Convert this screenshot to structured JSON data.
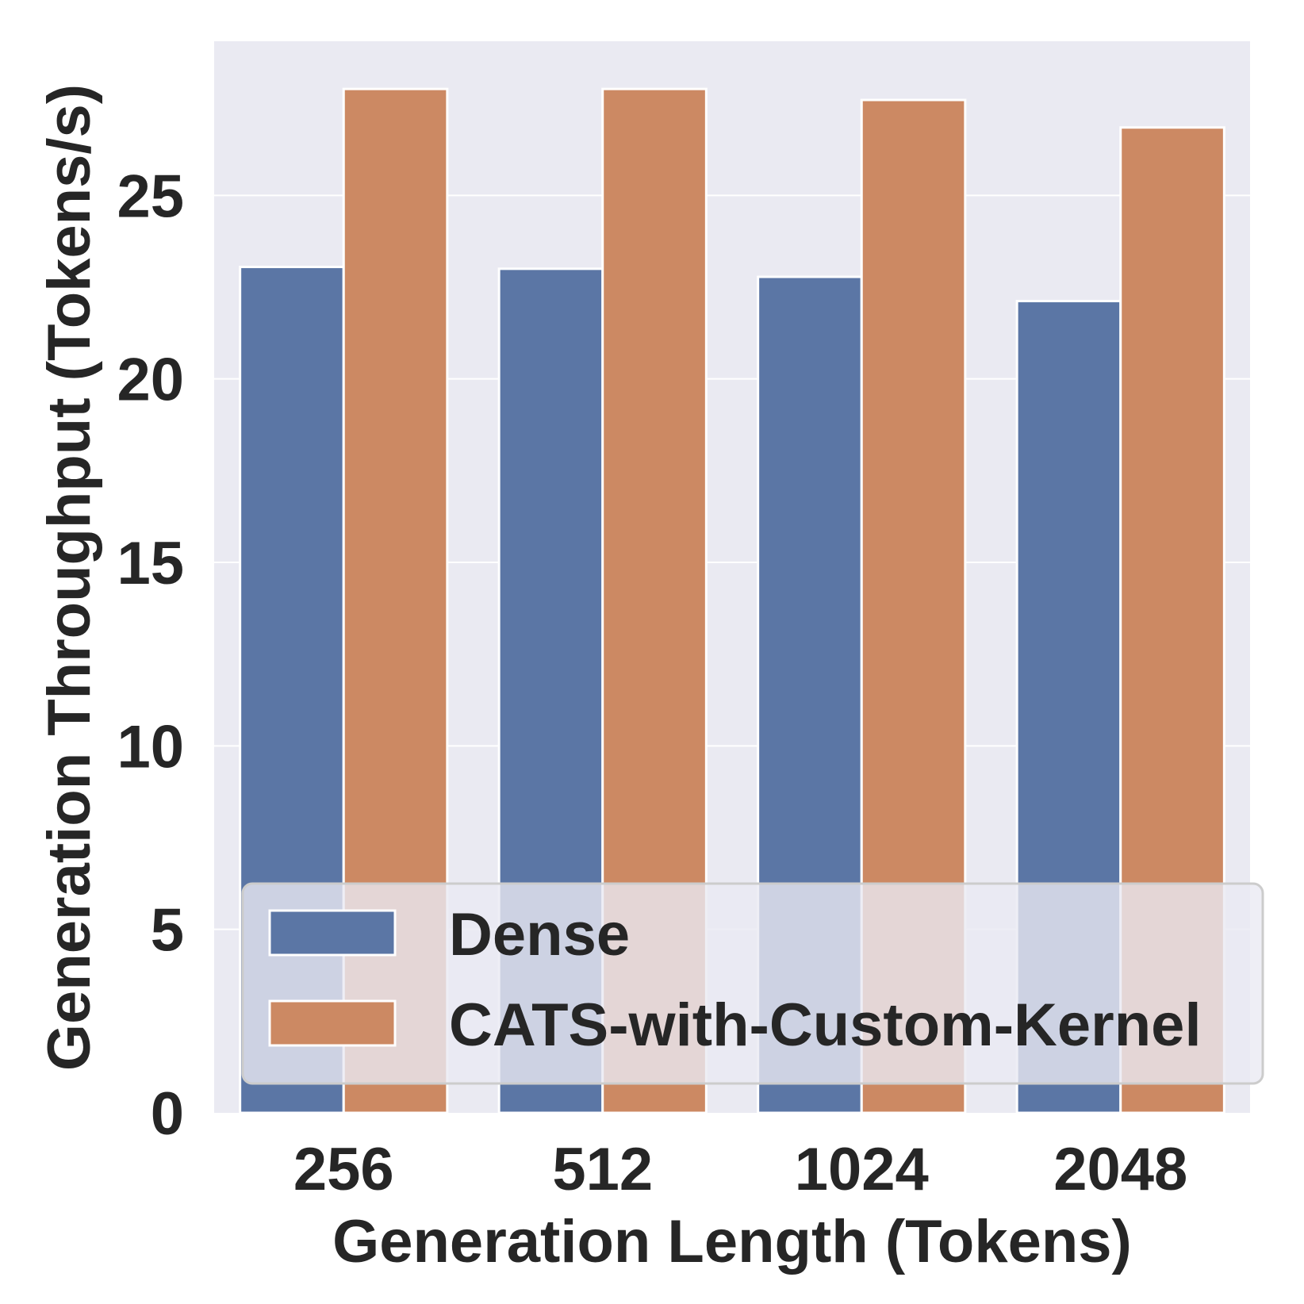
{
  "chart_data": {
    "type": "bar",
    "title": "",
    "xlabel": "Generation Length (Tokens)",
    "ylabel": "Generation Throughput (Tokens/s)",
    "categories": [
      "256",
      "512",
      "1024",
      "2048"
    ],
    "series": [
      {
        "name": "Dense",
        "color": "#5b76a5",
        "values": [
          23.05,
          23.0,
          22.78,
          22.12
        ]
      },
      {
        "name": "CATS-with-Custom-Kernel",
        "color": "#cc8963",
        "values": [
          27.9,
          27.9,
          27.6,
          26.85
        ]
      }
    ],
    "ylim": [
      0,
      29.2
    ],
    "yticks": [
      0,
      5,
      10,
      15,
      20,
      25
    ],
    "ytick_labels": [
      "0",
      "5",
      "10",
      "15",
      "20",
      "25"
    ],
    "grid": true,
    "plot_background": "#eaeaf2",
    "grid_color": "#ffffff",
    "legend": {
      "position": "lower-right"
    }
  }
}
